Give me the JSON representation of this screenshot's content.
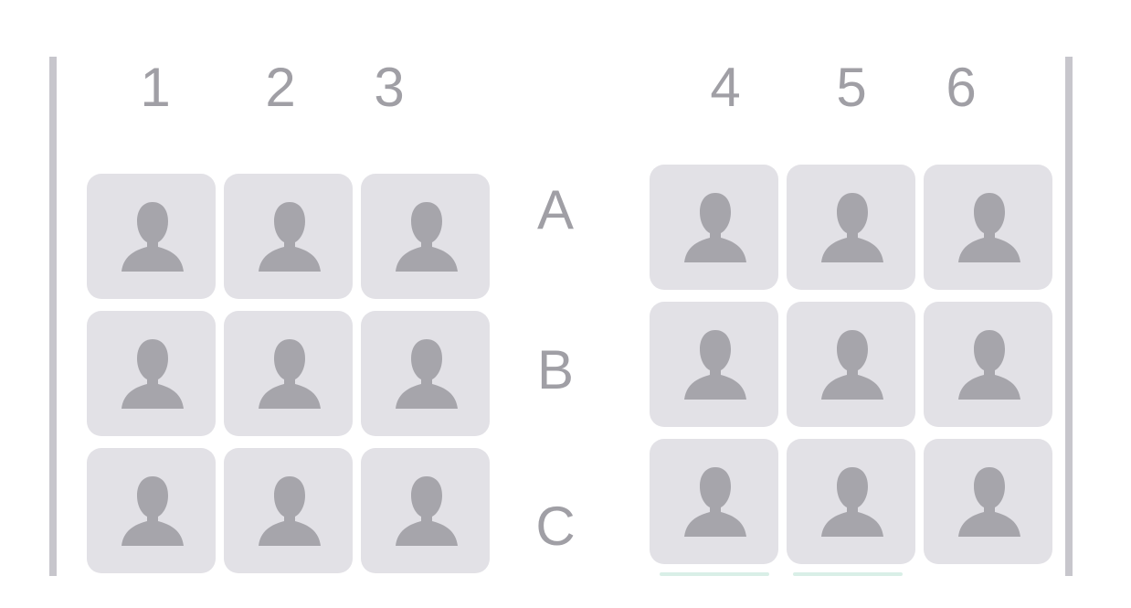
{
  "columns": [
    "1",
    "2",
    "3",
    "4",
    "5",
    "6"
  ],
  "rows": [
    "A",
    "B",
    "C"
  ],
  "seat_icon": "person-silhouette-icon",
  "colors": {
    "wall": "#c7c6cc",
    "label": "#a09fa5",
    "seat_background": "#e2e1e6",
    "seat_icon": "#a6a5ab"
  }
}
